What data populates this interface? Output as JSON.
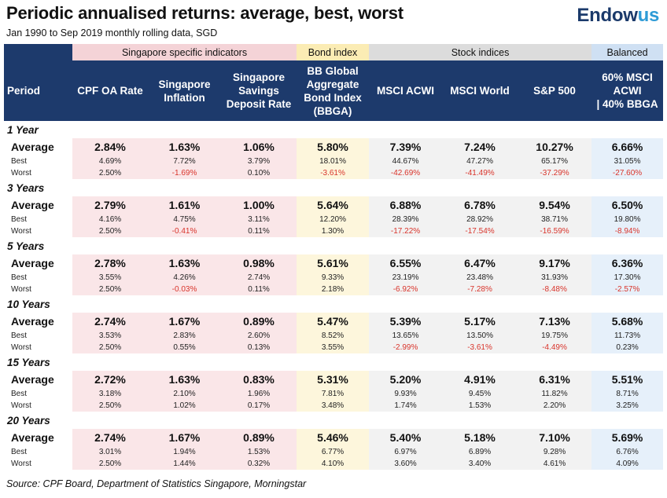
{
  "title": "Periodic annualised returns: average, best, worst",
  "subtitle": "Jan 1990 to Sep 2019 monthly rolling data, SGD",
  "logo": {
    "main": "Endow",
    "accent": "us"
  },
  "source": "Source: CPF Board, Department of Statistics Singapore, Morningstar",
  "colors": {
    "header_navy": "#1d3a6c",
    "negative": "#d9342b",
    "singapore": "#f4d3d7",
    "bond": "#fbecb4",
    "stock": "#dcdcdc",
    "balanced": "#cfe0f3"
  },
  "chart_data": {
    "type": "table",
    "title": "Periodic annualised returns: average, best, worst",
    "groups": [
      {
        "label": "Singapore specific indicators",
        "span": 3
      },
      {
        "label": "Bond index",
        "span": 1
      },
      {
        "label": "Stock indices",
        "span": 3
      },
      {
        "label": "Balanced",
        "span": 1
      }
    ],
    "period_header": "Period",
    "columns": [
      {
        "label": "CPF OA Rate",
        "lines": [
          "CPF OA Rate"
        ],
        "group": "sg"
      },
      {
        "label": "Singapore Inflation",
        "lines": [
          "Singapore",
          "Inflation"
        ],
        "group": "sg"
      },
      {
        "label": "Singapore Savings Deposit Rate",
        "lines": [
          "Singapore",
          "Savings",
          "Deposit Rate"
        ],
        "group": "sg"
      },
      {
        "label": "BB Global Aggregate Bond Index (BBGA)",
        "lines": [
          "BB Global",
          "Aggregate",
          "Bond Index",
          "(BBGA)"
        ],
        "group": "bond"
      },
      {
        "label": "MSCI ACWI",
        "lines": [
          "MSCI ACWI"
        ],
        "group": "stock"
      },
      {
        "label": "MSCI World",
        "lines": [
          "MSCI World"
        ],
        "group": "stock"
      },
      {
        "label": "S&P 500",
        "lines": [
          "S&P 500"
        ],
        "group": "stock"
      },
      {
        "label": "60% MSCI ACWI | 40% BBGA",
        "lines": [
          "60% MSCI",
          "ACWI",
          "| 40% BBGA"
        ],
        "group": "bal"
      }
    ],
    "row_labels": {
      "average": "Average",
      "best": "Best",
      "worst": "Worst"
    },
    "periods": [
      {
        "label": "1 Year",
        "average": [
          "2.84%",
          "1.63%",
          "1.06%",
          "5.80%",
          "7.39%",
          "7.24%",
          "10.27%",
          "6.66%"
        ],
        "best": [
          "4.69%",
          "7.72%",
          "3.79%",
          "18.01%",
          "44.67%",
          "47.27%",
          "65.17%",
          "31.05%"
        ],
        "worst": [
          "2.50%",
          "-1.69%",
          "0.10%",
          "-3.61%",
          "-42.69%",
          "-41.49%",
          "-37.29%",
          "-27.60%"
        ]
      },
      {
        "label": "3 Years",
        "average": [
          "2.79%",
          "1.61%",
          "1.00%",
          "5.64%",
          "6.88%",
          "6.78%",
          "9.54%",
          "6.50%"
        ],
        "best": [
          "4.16%",
          "4.75%",
          "3.11%",
          "12.20%",
          "28.39%",
          "28.92%",
          "38.71%",
          "19.80%"
        ],
        "worst": [
          "2.50%",
          "-0.41%",
          "0.11%",
          "1.30%",
          "-17.22%",
          "-17.54%",
          "-16.59%",
          "-8.94%"
        ]
      },
      {
        "label": "5 Years",
        "average": [
          "2.78%",
          "1.63%",
          "0.98%",
          "5.61%",
          "6.55%",
          "6.47%",
          "9.17%",
          "6.36%"
        ],
        "best": [
          "3.55%",
          "4.26%",
          "2.74%",
          "9.33%",
          "23.19%",
          "23.48%",
          "31.93%",
          "17.30%"
        ],
        "worst": [
          "2.50%",
          "-0.03%",
          "0.11%",
          "2.18%",
          "-6.92%",
          "-7.28%",
          "-8.48%",
          "-2.57%"
        ]
      },
      {
        "label": "10 Years",
        "average": [
          "2.74%",
          "1.67%",
          "0.89%",
          "5.47%",
          "5.39%",
          "5.17%",
          "7.13%",
          "5.68%"
        ],
        "best": [
          "3.53%",
          "2.83%",
          "2.60%",
          "8.52%",
          "13.65%",
          "13.50%",
          "19.75%",
          "11.73%"
        ],
        "worst": [
          "2.50%",
          "0.55%",
          "0.13%",
          "3.55%",
          "-2.99%",
          "-3.61%",
          "-4.49%",
          "0.23%"
        ]
      },
      {
        "label": "15 Years",
        "average": [
          "2.72%",
          "1.63%",
          "0.83%",
          "5.31%",
          "5.20%",
          "4.91%",
          "6.31%",
          "5.51%"
        ],
        "best": [
          "3.18%",
          "2.10%",
          "1.96%",
          "7.81%",
          "9.93%",
          "9.45%",
          "11.82%",
          "8.71%"
        ],
        "worst": [
          "2.50%",
          "1.02%",
          "0.17%",
          "3.48%",
          "1.74%",
          "1.53%",
          "2.20%",
          "3.25%"
        ]
      },
      {
        "label": "20 Years",
        "average": [
          "2.74%",
          "1.67%",
          "0.89%",
          "5.46%",
          "5.40%",
          "5.18%",
          "7.10%",
          "5.69%"
        ],
        "best": [
          "3.01%",
          "1.94%",
          "1.53%",
          "6.77%",
          "6.97%",
          "6.89%",
          "9.28%",
          "6.76%"
        ],
        "worst": [
          "2.50%",
          "1.44%",
          "0.32%",
          "4.10%",
          "3.60%",
          "3.40%",
          "4.61%",
          "4.09%"
        ]
      }
    ]
  }
}
